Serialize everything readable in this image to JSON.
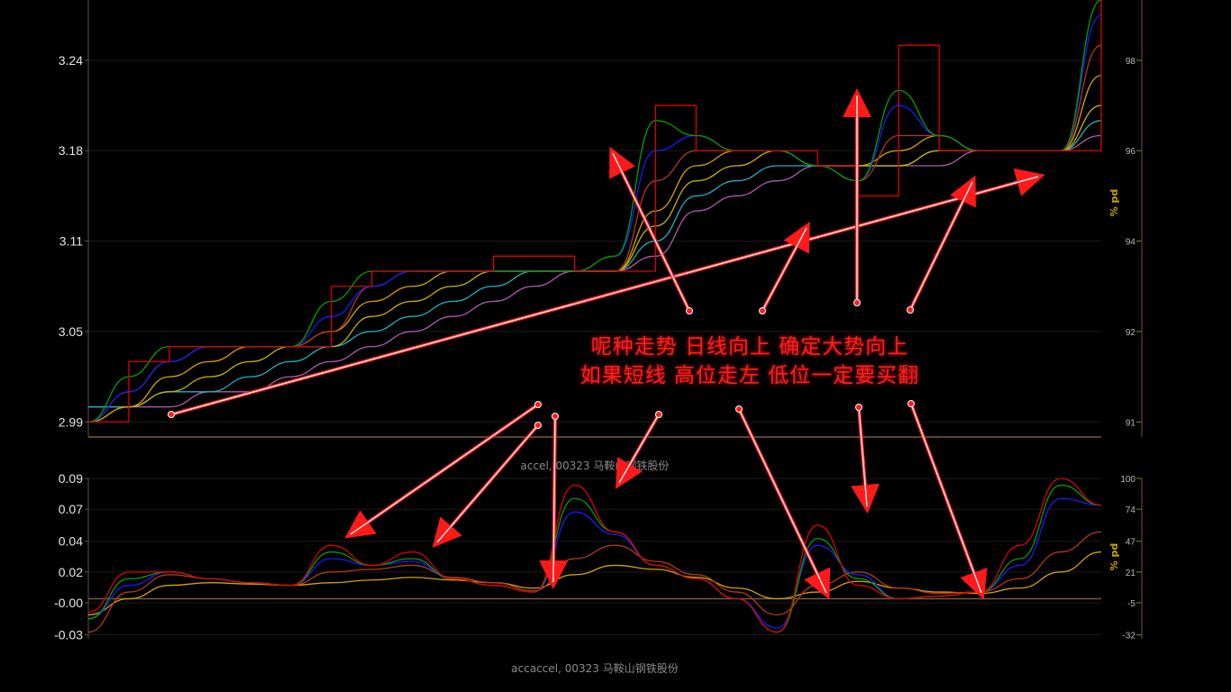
{
  "colors": {
    "background": "#000000",
    "grid": "#1c1c1c",
    "axis": "#555555",
    "baseline": "#7a5a3a",
    "price": "#e00000",
    "annotation": "#ff1a1a",
    "arrow_outer": "#ff1a1a",
    "arrow_inner": "#ffffff"
  },
  "captions": {
    "top": "accel, 00323 马鞍山钢铁股份",
    "bottom": "accaccel, 00323 马鞍山钢铁股份"
  },
  "annotation": {
    "line1": "呢种走势 日线向上 确定大势向上",
    "line2": "如果短线 高位走左 低位一定要买翻"
  },
  "chart_data": [
    {
      "type": "line",
      "name": "price-panel",
      "ylim": [
        2.99,
        3.28
      ],
      "left_ticks": [
        "3.24",
        "3.18",
        "3.11",
        "3.05",
        "2.99"
      ],
      "left_tick_values": [
        3.24,
        3.18,
        3.12,
        3.06,
        3.0
      ],
      "right_ticks": [
        "98",
        "96",
        "94",
        "92",
        "91"
      ],
      "right_unit": "% pd",
      "x": [
        0,
        4,
        8,
        12,
        16,
        20,
        24,
        28,
        32,
        36,
        40,
        44,
        48,
        52,
        56,
        60,
        64,
        68,
        72,
        76,
        80,
        84,
        88,
        92,
        96,
        100
      ],
      "series": [
        {
          "color": "#e00000",
          "values": [
            3.0,
            3.04,
            3.05,
            3.05,
            3.05,
            3.05,
            3.09,
            3.1,
            3.1,
            3.1,
            3.11,
            3.11,
            3.1,
            3.1,
            3.21,
            3.18,
            3.18,
            3.18,
            3.17,
            3.15,
            3.25,
            3.18,
            3.18,
            3.18,
            3.18,
            3.29
          ]
        },
        {
          "color": "#00a000",
          "values": [
            3.0,
            3.03,
            3.05,
            3.05,
            3.05,
            3.05,
            3.08,
            3.1,
            3.1,
            3.1,
            3.1,
            3.1,
            3.1,
            3.11,
            3.2,
            3.19,
            3.18,
            3.18,
            3.17,
            3.16,
            3.22,
            3.19,
            3.18,
            3.18,
            3.18,
            3.28
          ]
        },
        {
          "color": "#1a1aff",
          "values": [
            3.0,
            3.02,
            3.04,
            3.05,
            3.05,
            3.05,
            3.07,
            3.09,
            3.1,
            3.1,
            3.1,
            3.1,
            3.1,
            3.11,
            3.18,
            3.19,
            3.18,
            3.18,
            3.17,
            3.16,
            3.21,
            3.19,
            3.18,
            3.18,
            3.18,
            3.27
          ]
        },
        {
          "color": "#b03a1a",
          "values": [
            3.0,
            3.02,
            3.04,
            3.05,
            3.05,
            3.05,
            3.06,
            3.09,
            3.1,
            3.1,
            3.1,
            3.1,
            3.1,
            3.1,
            3.16,
            3.18,
            3.18,
            3.18,
            3.17,
            3.16,
            3.19,
            3.19,
            3.18,
            3.18,
            3.18,
            3.25
          ]
        },
        {
          "color": "#d4a000",
          "values": [
            3.0,
            3.01,
            3.03,
            3.04,
            3.05,
            3.05,
            3.06,
            3.08,
            3.09,
            3.1,
            3.1,
            3.1,
            3.1,
            3.1,
            3.14,
            3.17,
            3.18,
            3.18,
            3.17,
            3.17,
            3.18,
            3.19,
            3.18,
            3.18,
            3.18,
            3.23
          ]
        },
        {
          "color": "#c8b400",
          "values": [
            3.0,
            3.01,
            3.02,
            3.03,
            3.04,
            3.05,
            3.05,
            3.07,
            3.08,
            3.09,
            3.1,
            3.1,
            3.1,
            3.1,
            3.13,
            3.16,
            3.17,
            3.18,
            3.17,
            3.17,
            3.17,
            3.18,
            3.18,
            3.18,
            3.18,
            3.21
          ]
        },
        {
          "color": "#20b0c0",
          "values": [
            3.01,
            3.01,
            3.02,
            3.02,
            3.03,
            3.04,
            3.05,
            3.06,
            3.07,
            3.08,
            3.09,
            3.1,
            3.1,
            3.1,
            3.12,
            3.15,
            3.16,
            3.17,
            3.17,
            3.17,
            3.17,
            3.18,
            3.18,
            3.18,
            3.18,
            3.2
          ]
        },
        {
          "color": "#b05ab0",
          "values": [
            3.01,
            3.01,
            3.01,
            3.02,
            3.02,
            3.03,
            3.04,
            3.05,
            3.06,
            3.07,
            3.08,
            3.09,
            3.1,
            3.1,
            3.11,
            3.14,
            3.15,
            3.16,
            3.17,
            3.17,
            3.17,
            3.17,
            3.18,
            3.18,
            3.18,
            3.19
          ]
        }
      ]
    },
    {
      "type": "line",
      "name": "accel-panel",
      "ylim": [
        -0.03,
        0.09
      ],
      "left_ticks": [
        "0.09",
        "0.07",
        "0.04",
        "0.02",
        "-0.00",
        "-0.03"
      ],
      "left_tick_values": [
        0.09,
        0.067,
        0.043,
        0.02,
        -0.003,
        -0.027
      ],
      "right_ticks": [
        "100",
        "74",
        "47",
        "21",
        "-5",
        "-32"
      ],
      "right_unit": "% pd",
      "x": [
        0,
        4,
        8,
        12,
        16,
        20,
        24,
        28,
        32,
        36,
        40,
        44,
        48,
        52,
        56,
        60,
        64,
        68,
        72,
        76,
        80,
        84,
        88,
        92,
        96,
        100
      ],
      "series": [
        {
          "color": "#e00000",
          "values": [
            -0.01,
            0.02,
            0.02,
            0.015,
            0.012,
            0.01,
            0.04,
            0.025,
            0.035,
            0.015,
            0.01,
            0.005,
            0.085,
            0.05,
            0.025,
            0.015,
            0.0,
            -0.025,
            0.055,
            0.01,
            0.0,
            0.002,
            0.005,
            0.04,
            0.09,
            0.07
          ]
        },
        {
          "color": "#00a000",
          "values": [
            -0.015,
            0.015,
            0.02,
            0.015,
            0.012,
            0.01,
            0.035,
            0.025,
            0.03,
            0.015,
            0.01,
            0.005,
            0.075,
            0.05,
            0.025,
            0.015,
            0.0,
            -0.025,
            0.045,
            0.015,
            0.0,
            0.002,
            0.005,
            0.03,
            0.085,
            0.07
          ]
        },
        {
          "color": "#1a1aff",
          "values": [
            -0.015,
            0.01,
            0.02,
            0.015,
            0.012,
            0.01,
            0.03,
            0.025,
            0.028,
            0.015,
            0.01,
            0.005,
            0.065,
            0.048,
            0.025,
            0.015,
            0.0,
            -0.022,
            0.04,
            0.018,
            0.0,
            0.002,
            0.005,
            0.025,
            0.075,
            0.07
          ]
        },
        {
          "color": "#b03a1a",
          "values": [
            -0.025,
            0.005,
            0.018,
            0.015,
            0.012,
            0.01,
            0.02,
            0.022,
            0.025,
            0.016,
            0.012,
            0.006,
            0.03,
            0.04,
            0.028,
            0.018,
            0.005,
            -0.012,
            0.01,
            0.02,
            0.008,
            0.004,
            0.005,
            0.015,
            0.035,
            0.05
          ]
        },
        {
          "color": "#d4a000",
          "values": [
            -0.012,
            0.0,
            0.01,
            0.012,
            0.011,
            0.01,
            0.012,
            0.014,
            0.016,
            0.014,
            0.012,
            0.008,
            0.018,
            0.025,
            0.022,
            0.016,
            0.008,
            0.0,
            0.005,
            0.013,
            0.008,
            0.005,
            0.004,
            0.008,
            0.02,
            0.035
          ]
        }
      ]
    }
  ]
}
